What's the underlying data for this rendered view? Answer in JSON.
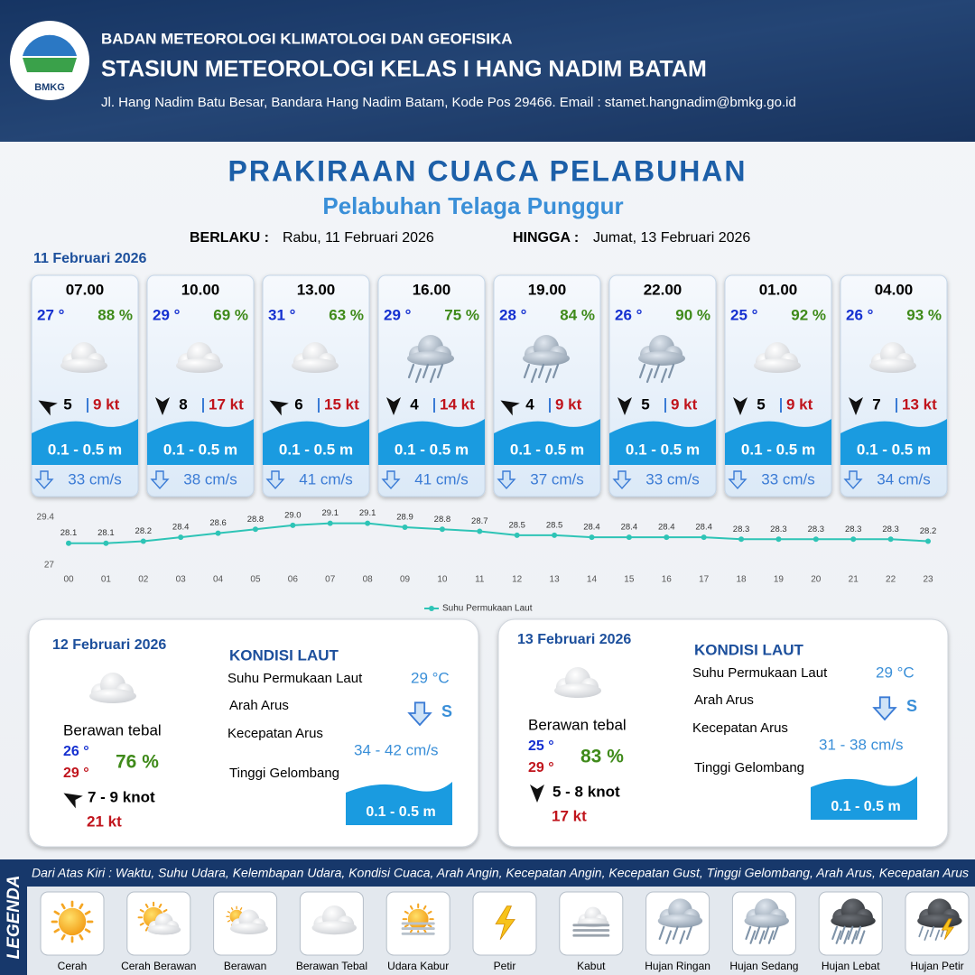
{
  "header": {
    "logo": "BMKG",
    "agency": "BADAN METEOROLOGI KLIMATOLOGI DAN GEOFISIKA",
    "station": "STASIUN METEOROLOGI KELAS I HANG NADIM BATAM",
    "address": "Jl. Hang Nadim Batu Besar, Bandara Hang Nadim Batam, Kode Pos 29466. Email : stamet.hangnadim@bmkg.go.id"
  },
  "title": "PRAKIRAAN CUACA PELABUHAN",
  "subtitle": "Pelabuhan Telaga Punggur",
  "validity": {
    "from_label": "BERLAKU :",
    "from": "Rabu, 11 Februari 2026",
    "to_label": "HINGGA :",
    "to": "Jumat, 13 Februari 2026"
  },
  "day1": {
    "date": "11 Februari 2026",
    "forecasts": [
      {
        "time": "07.00",
        "temp": "27 °",
        "humidity": "88 %",
        "icon": "Berawan Tebal",
        "wind_direction_deg": 300,
        "wind_speed": "5",
        "gust": "9 kt",
        "wave": "0.1 - 0.5 m",
        "current": "33 cm/s"
      },
      {
        "time": "10.00",
        "temp": "29 °",
        "humidity": "69 %",
        "icon": "Berawan Tebal",
        "wind_direction_deg": 180,
        "wind_speed": "8",
        "gust": "17 kt",
        "wave": "0.1 - 0.5 m",
        "current": "38 cm/s"
      },
      {
        "time": "13.00",
        "temp": "31 °",
        "humidity": "63 %",
        "icon": "Berawan Tebal",
        "wind_direction_deg": 300,
        "wind_speed": "6",
        "gust": "15 kt",
        "wave": "0.1 - 0.5 m",
        "current": "41 cm/s"
      },
      {
        "time": "16.00",
        "temp": "29 °",
        "humidity": "75 %",
        "icon": "Hujan Ringan",
        "wind_direction_deg": 180,
        "wind_speed": "4",
        "gust": "14 kt",
        "wave": "0.1 - 0.5 m",
        "current": "41 cm/s"
      },
      {
        "time": "19.00",
        "temp": "28 °",
        "humidity": "84 %",
        "icon": "Hujan Ringan",
        "wind_direction_deg": 300,
        "wind_speed": "4",
        "gust": "9 kt",
        "wave": "0.1 - 0.5 m",
        "current": "37 cm/s"
      },
      {
        "time": "22.00",
        "temp": "26 °",
        "humidity": "90 %",
        "icon": "Hujan Ringan",
        "wind_direction_deg": 180,
        "wind_speed": "5",
        "gust": "9 kt",
        "wave": "0.1 - 0.5 m",
        "current": "33 cm/s"
      },
      {
        "time": "01.00",
        "temp": "25 °",
        "humidity": "92 %",
        "icon": "Berawan Tebal",
        "wind_direction_deg": 180,
        "wind_speed": "5",
        "gust": "9 kt",
        "wave": "0.1 - 0.5 m",
        "current": "33 cm/s"
      },
      {
        "time": "04.00",
        "temp": "26 °",
        "humidity": "93 %",
        "icon": "Berawan Tebal",
        "wind_direction_deg": 180,
        "wind_speed": "7",
        "gust": "13 kt",
        "wave": "0.1 - 0.5 m",
        "current": "34 cm/s"
      }
    ]
  },
  "chart_data": {
    "type": "line",
    "categories": [
      "00",
      "01",
      "02",
      "03",
      "04",
      "05",
      "06",
      "07",
      "08",
      "09",
      "10",
      "11",
      "12",
      "13",
      "14",
      "15",
      "16",
      "17",
      "18",
      "19",
      "20",
      "21",
      "22",
      "23"
    ],
    "series": [
      {
        "name": "Suhu Permukaan Laut",
        "color": "#2ec4b6",
        "values": [
          28.1,
          28.1,
          28.2,
          28.4,
          28.6,
          28.8,
          29.0,
          29.1,
          29.1,
          28.9,
          28.8,
          28.7,
          28.5,
          28.5,
          28.4,
          28.4,
          28.4,
          28.4,
          28.3,
          28.3,
          28.3,
          28.3,
          28.3,
          28.2
        ],
        "value_labels": [
          "28.1",
          "28.1",
          "28.2",
          "28.4",
          "28.6",
          "28.8",
          "29.0",
          "29.1",
          "29.1",
          "28.9",
          "28.8",
          "28.7",
          "28.5",
          "28.5",
          "28.4",
          "28.4",
          "28.4",
          "28.4",
          "28.3",
          "28.3",
          "28.3",
          "28.3",
          "28.3",
          "28.2"
        ]
      }
    ],
    "ylim": [
      27,
      29.4
    ],
    "yticks": [
      27,
      29.4
    ],
    "grid": false,
    "legend": "bottom"
  },
  "days": [
    {
      "date": "12 Februari 2026",
      "condition": "Berawan tebal",
      "temp_min": "26 °",
      "temp_max": "29 °",
      "humidity": "76 %",
      "wind_direction_deg": 300,
      "wind": "7  - 9 knot",
      "gust": "21 kt",
      "sea_title": "KONDISI LAUT",
      "sst_label": "Suhu Permukaan Laut",
      "sst": "29 °C",
      "current_dir_label": "Arah Arus",
      "current_dir": "S",
      "current_speed_label": "Kecepatan Arus",
      "current_speed": "34  - 42 cm/s",
      "wave_label": "Tinggi Gelombang",
      "wave": "0.1 - 0.5 m"
    },
    {
      "date": "13 Februari 2026",
      "condition": "Berawan tebal",
      "temp_min": "25 °",
      "temp_max": "29 °",
      "humidity": "83 %",
      "wind_direction_deg": 180,
      "wind": "5  - 8 knot",
      "gust": "17 kt",
      "sea_title": "KONDISI LAUT",
      "sst_label": "Suhu Permukaan Laut",
      "sst": "29 °C",
      "current_dir_label": "Arah Arus",
      "current_dir": "S",
      "current_speed_label": "Kecepatan Arus",
      "current_speed": "31  - 38 cm/s",
      "wave_label": "Tinggi Gelombang",
      "wave": "0.1 - 0.5 m"
    }
  ],
  "legend": {
    "title": "LEGENDA",
    "description": "Dari Atas Kiri : Waktu, Suhu Udara, Kelembapan Udara, Kondisi Cuaca, Arah Angin, Kecepatan Angin, Kecepatan Gust, Tinggi Gelombang, Arah Arus, Kecepatan Arus",
    "items": [
      "Cerah",
      "Cerah Berawan",
      "Berawan",
      "Berawan Tebal",
      "Udara Kabur",
      "Petir",
      "Kabut",
      "Hujan Ringan",
      "Hujan Sedang",
      "Hujan Lebat",
      "Hujan Petir"
    ]
  }
}
